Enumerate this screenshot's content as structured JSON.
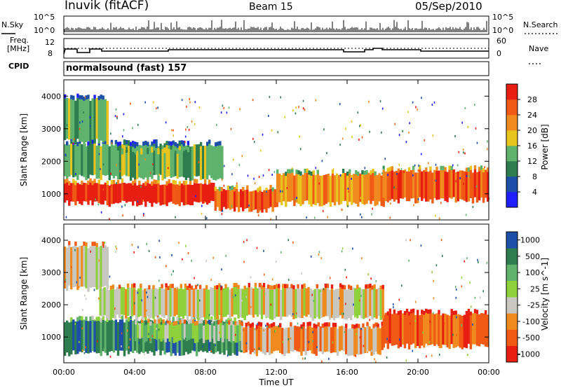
{
  "header": {
    "station": "Inuvik (fitACF)",
    "beam": "Beam 15",
    "date": "05/Sep/2010"
  },
  "panel_nsky": {
    "left_label": "N.Sky",
    "left_ticks": [
      "10^5",
      "10^0"
    ],
    "right_ticks": [
      "10^5",
      "10^0"
    ],
    "right_label": "N.Search"
  },
  "panel_freq": {
    "left_label_1": "Freq.",
    "left_label_2": "[MHz]",
    "left_ticks": [
      "12",
      "8"
    ],
    "right_ticks": [
      "60",
      "0"
    ],
    "right_label": "Nave",
    "cpid_label": "CPID"
  },
  "mode_text": "normalsound (fast) 157",
  "colors": {
    "power_scale": [
      "#1f1fff",
      "#1d4ea8",
      "#2e7d4f",
      "#5fb36c",
      "#e8c51e",
      "#f08a1e",
      "#f05a14",
      "#e81e12"
    ],
    "velocity_scale": [
      "#e81e12",
      "#f05a14",
      "#f08a1e",
      "#c8c8c0",
      "#8fd13a",
      "#5fb36c",
      "#2e7d4f",
      "#1d4ea8"
    ]
  },
  "chart_data": [
    {
      "type": "heatmap",
      "xlabel": "Time UT",
      "ylabel": "Slant Range [km]",
      "x_ticks": [
        "00:00",
        "04:00",
        "08:00",
        "12:00",
        "16:00",
        "20:00",
        "00:00"
      ],
      "y_ticks": [
        1000,
        2000,
        3000,
        4000
      ],
      "xlim_hours": [
        0,
        24
      ],
      "ylim_km": [
        200,
        4500
      ],
      "colorbar_label": "Power [dB]",
      "colorbar_ticks": [
        4,
        8,
        12,
        16,
        20,
        24,
        28
      ],
      "bands": [
        {
          "from_h": 0,
          "to_h": 8.5,
          "lo_km": 700,
          "hi_km": 1300,
          "level": 7
        },
        {
          "from_h": 8.5,
          "to_h": 12,
          "lo_km": 500,
          "hi_km": 1100,
          "level": 6
        },
        {
          "from_h": 12,
          "to_h": 18,
          "lo_km": 700,
          "hi_km": 1600,
          "level": 5
        },
        {
          "from_h": 18,
          "to_h": 24,
          "lo_km": 800,
          "hi_km": 1700,
          "level": 6
        },
        {
          "from_h": 0,
          "to_h": 9,
          "lo_km": 1500,
          "hi_km": 2500,
          "level": 3
        },
        {
          "from_h": 3,
          "to_h": 7,
          "lo_km": 2300,
          "hi_km": 2450,
          "level": 3
        },
        {
          "from_h": 0,
          "to_h": 2.5,
          "lo_km": 2600,
          "hi_km": 3900,
          "level": 3
        }
      ]
    },
    {
      "type": "heatmap",
      "xlabel": "Time UT",
      "ylabel": "Slant Range [km]",
      "x_ticks": [
        "00:00",
        "04:00",
        "08:00",
        "12:00",
        "16:00",
        "20:00",
        "00:00"
      ],
      "y_ticks": [
        1000,
        2000,
        3000,
        4000
      ],
      "xlim_hours": [
        0,
        24
      ],
      "ylim_km": [
        200,
        4500
      ],
      "colorbar_label": "Velocity [m s^-1]",
      "colorbar_ticks": [
        1000,
        500,
        100,
        25,
        -25,
        -100,
        -500,
        -1000
      ],
      "bands": [
        {
          "from_h": 0,
          "to_h": 10,
          "lo_km": 500,
          "hi_km": 1500,
          "level": 6
        },
        {
          "from_h": 4,
          "to_h": 10,
          "lo_km": 900,
          "hi_km": 1400,
          "level": 4
        },
        {
          "from_h": 10,
          "to_h": 18,
          "lo_km": 500,
          "hi_km": 1300,
          "level": 2
        },
        {
          "from_h": 18,
          "to_h": 24,
          "lo_km": 700,
          "hi_km": 1700,
          "level": 1
        },
        {
          "from_h": 2,
          "to_h": 18,
          "lo_km": 1600,
          "hi_km": 2500,
          "level": 3
        },
        {
          "from_h": 0,
          "to_h": 2.5,
          "lo_km": 2500,
          "hi_km": 3800,
          "level": 3
        }
      ]
    }
  ]
}
